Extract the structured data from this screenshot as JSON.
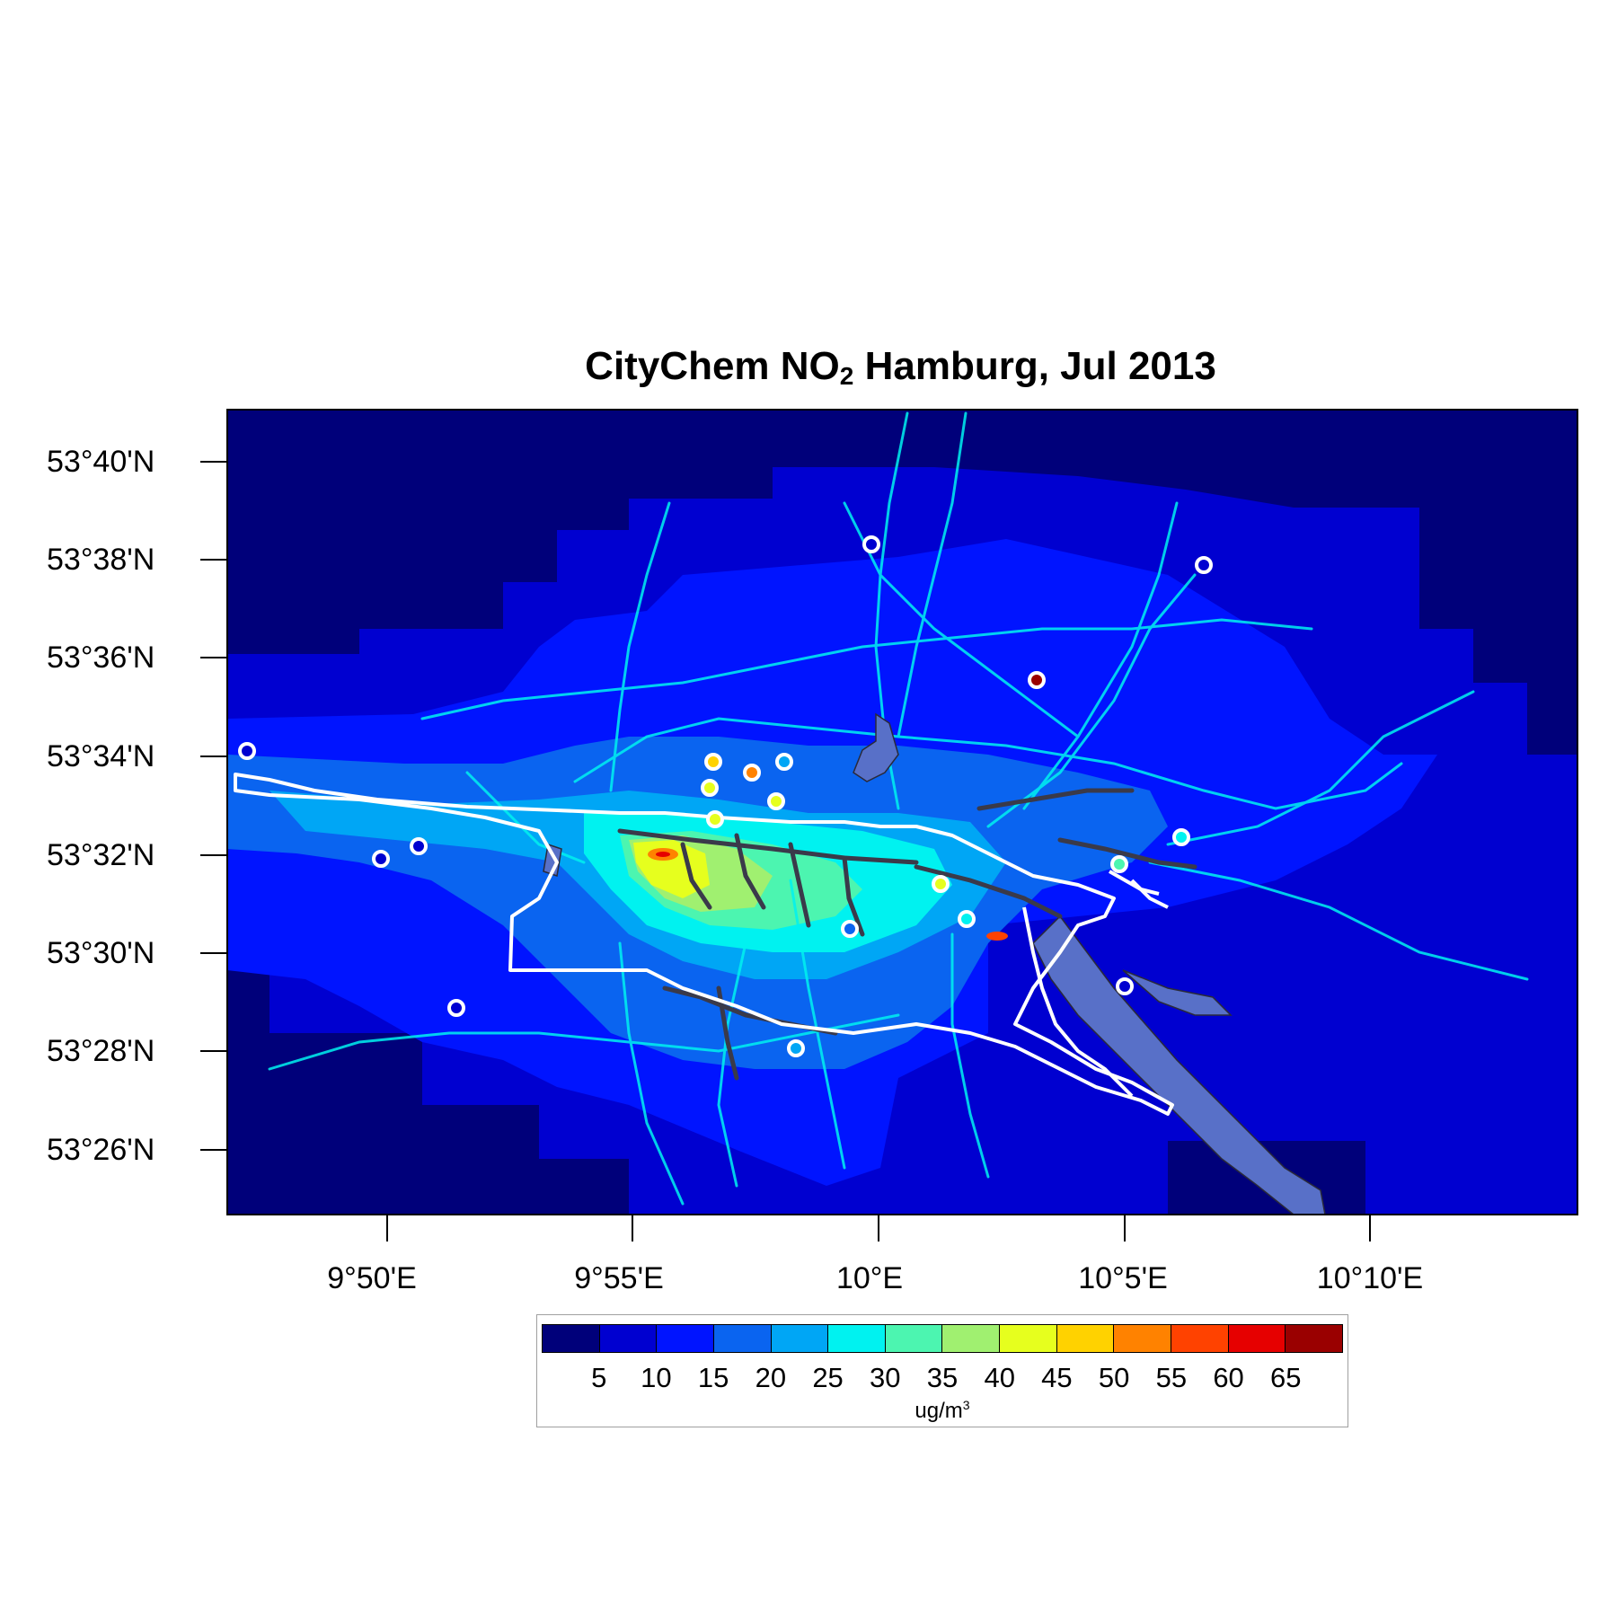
{
  "title": {
    "prefix": "CityChem NO",
    "sub": "2",
    "suffix": " Hamburg, Jul 2013"
  },
  "axes": {
    "lat_ticks": [
      "53°40'N",
      "53°38'N",
      "53°36'N",
      "53°34'N",
      "53°32'N",
      "53°30'N",
      "53°28'N",
      "53°26'N"
    ],
    "lon_ticks": [
      "9°50'E",
      "9°55'E",
      "10°E",
      "10°5'E",
      "10°10'E"
    ]
  },
  "legend": {
    "colors": [
      "#00007a",
      "#0000d0",
      "#0014ff",
      "#0a64f0",
      "#00a6f5",
      "#00f2f0",
      "#4cf5b0",
      "#a0f070",
      "#e6ff1e",
      "#ffd200",
      "#ff8200",
      "#ff4200",
      "#e60000",
      "#9a0000"
    ],
    "labels": [
      "5",
      "10",
      "15",
      "20",
      "25",
      "30",
      "35",
      "40",
      "45",
      "50",
      "55",
      "60",
      "65"
    ],
    "unit": "ug/m",
    "unit_sup": "3"
  },
  "map_colors": {
    "water": "#5870c8",
    "boundary": "#ffffff",
    "highway": "#3a3a4a"
  },
  "stations": [
    {
      "id": "s1",
      "value_level": "below-5",
      "color": "#00007a"
    },
    {
      "id": "s2",
      "value_level": "low",
      "color": "#0000d0"
    },
    {
      "id": "s3",
      "value_level": "high",
      "color": "#9a0000"
    },
    {
      "id": "s4",
      "value_level": "moderate",
      "color": "#ffd200"
    },
    {
      "id": "s5",
      "value_level": "moderate",
      "color": "#e6ff1e"
    },
    {
      "id": "s6",
      "value_level": "mid",
      "color": "#4cf5b0"
    },
    {
      "id": "s7",
      "value_level": "mid",
      "color": "#0a64f0"
    }
  ]
}
